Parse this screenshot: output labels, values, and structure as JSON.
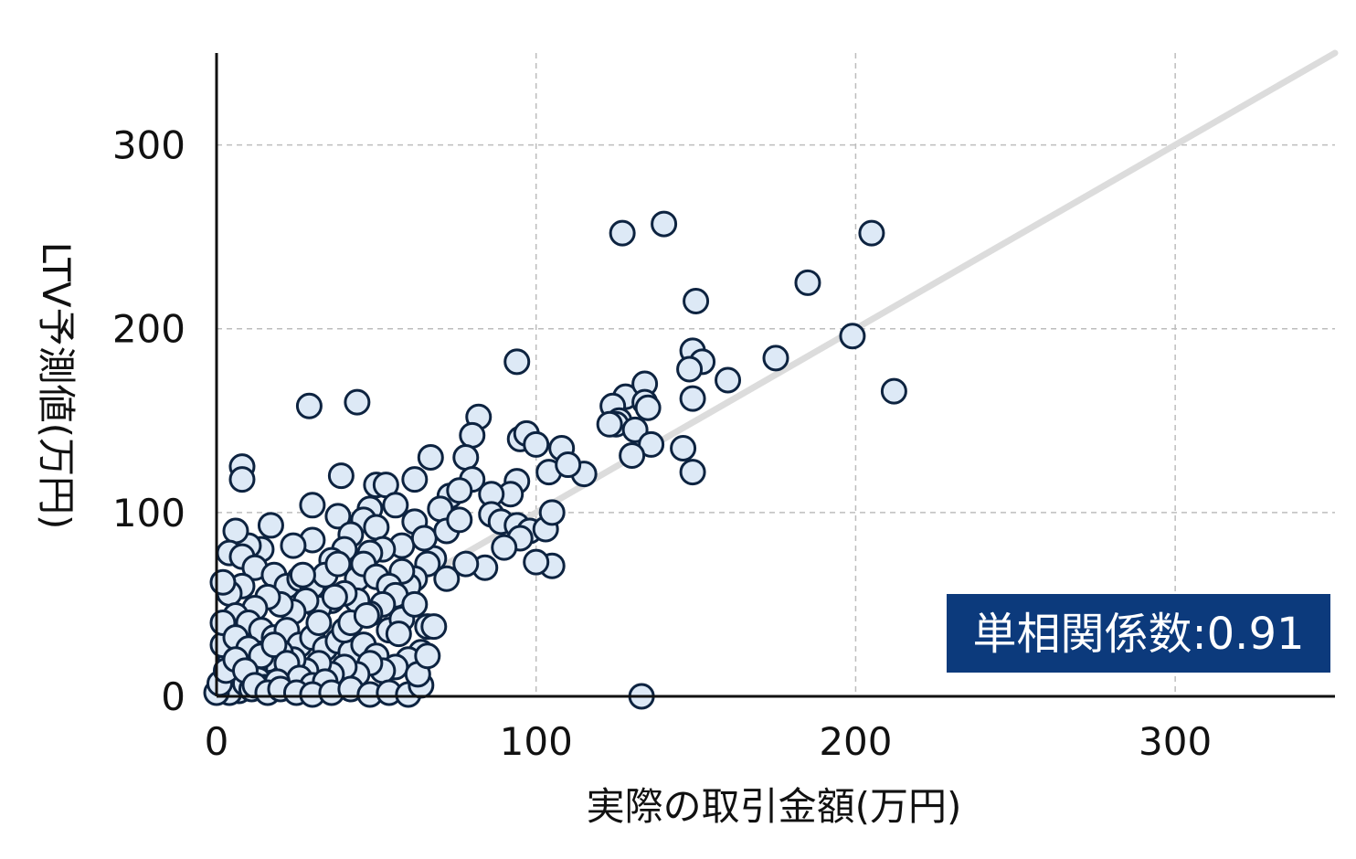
{
  "chart_data": {
    "type": "scatter",
    "title": "",
    "xlabel": "実際の取引金額(万円)",
    "ylabel": "LTV予測値(万円)",
    "xlim": [
      0,
      350
    ],
    "ylim": [
      0,
      350
    ],
    "xticks": [
      0,
      100,
      200,
      300
    ],
    "yticks": [
      0,
      100,
      200,
      300
    ],
    "x_tick_labels": [
      "0",
      "100",
      "200",
      "300"
    ],
    "y_tick_labels": [
      "0",
      "100",
      "200",
      "300"
    ],
    "grid": true,
    "reference_line": {
      "from": [
        0,
        0
      ],
      "to": [
        350,
        350
      ]
    },
    "annotation": "単相関係数:0.91",
    "colors": {
      "point_fill": "#dde9f6",
      "point_edge": "#0d2340",
      "annotation_bg": "#0c3a7c",
      "reference_line": "#dcdcdc"
    },
    "series": [
      {
        "values": [
          [
            127,
            252
          ],
          [
            140,
            257
          ],
          [
            205,
            252
          ],
          [
            185,
            225
          ],
          [
            150,
            215
          ],
          [
            199,
            196
          ],
          [
            149,
            188
          ],
          [
            152,
            182
          ],
          [
            148,
            178
          ],
          [
            175,
            184
          ],
          [
            160,
            172
          ],
          [
            212,
            166
          ],
          [
            94,
            182
          ],
          [
            29,
            158
          ],
          [
            44,
            160
          ],
          [
            149,
            162
          ],
          [
            128,
            163
          ],
          [
            134,
            170
          ],
          [
            134,
            160
          ],
          [
            135,
            157
          ],
          [
            124,
            158
          ],
          [
            126,
            150
          ],
          [
            125,
            148
          ],
          [
            123,
            148
          ],
          [
            131,
            145
          ],
          [
            136,
            137
          ],
          [
            130,
            131
          ],
          [
            146,
            135
          ],
          [
            149,
            122
          ],
          [
            108,
            135
          ],
          [
            115,
            121
          ],
          [
            104,
            122
          ],
          [
            110,
            126
          ],
          [
            95,
            140
          ],
          [
            97,
            143
          ],
          [
            100,
            137
          ],
          [
            82,
            152
          ],
          [
            80,
            142
          ],
          [
            78,
            130
          ],
          [
            80,
            118
          ],
          [
            8,
            125
          ],
          [
            8,
            118
          ],
          [
            39,
            120
          ],
          [
            30,
            104
          ],
          [
            94,
            117
          ],
          [
            92,
            110
          ],
          [
            73,
            109
          ],
          [
            70,
            102
          ],
          [
            67,
            130
          ],
          [
            62,
            118
          ],
          [
            76,
            112
          ],
          [
            86,
            110
          ],
          [
            86,
            99
          ],
          [
            89,
            95
          ],
          [
            94,
            93
          ],
          [
            98,
            90
          ],
          [
            103,
            91
          ],
          [
            105,
            100
          ],
          [
            95,
            86
          ],
          [
            90,
            81
          ],
          [
            105,
            71
          ],
          [
            100,
            73
          ],
          [
            84,
            70
          ],
          [
            78,
            72
          ],
          [
            68,
            75
          ],
          [
            66,
            72
          ],
          [
            72,
            64
          ],
          [
            62,
            64
          ],
          [
            60,
            60
          ],
          [
            58,
            68
          ],
          [
            50,
            115
          ],
          [
            53,
            115
          ],
          [
            48,
            102
          ],
          [
            46,
            96
          ],
          [
            50,
            92
          ],
          [
            56,
            104
          ],
          [
            62,
            95
          ],
          [
            58,
            82
          ],
          [
            52,
            80
          ],
          [
            48,
            78
          ],
          [
            38,
            98
          ],
          [
            42,
            88
          ],
          [
            40,
            80
          ],
          [
            36,
            74
          ],
          [
            30,
            85
          ],
          [
            24,
            82
          ],
          [
            17,
            93
          ],
          [
            14,
            80
          ],
          [
            10,
            82
          ],
          [
            6,
            90
          ],
          [
            4,
            78
          ],
          [
            8,
            76
          ],
          [
            12,
            70
          ],
          [
            18,
            66
          ],
          [
            22,
            60
          ],
          [
            26,
            64
          ],
          [
            30,
            60
          ],
          [
            34,
            66
          ],
          [
            38,
            72
          ],
          [
            44,
            64
          ],
          [
            46,
            72
          ],
          [
            50,
            65
          ],
          [
            54,
            60
          ],
          [
            56,
            55
          ],
          [
            52,
            50
          ],
          [
            48,
            45
          ],
          [
            44,
            52
          ],
          [
            40,
            56
          ],
          [
            36,
            52
          ],
          [
            32,
            48
          ],
          [
            28,
            52
          ],
          [
            24,
            46
          ],
          [
            20,
            50
          ],
          [
            16,
            54
          ],
          [
            12,
            48
          ],
          [
            8,
            60
          ],
          [
            4,
            56
          ],
          [
            2,
            62
          ],
          [
            6,
            44
          ],
          [
            10,
            40
          ],
          [
            14,
            36
          ],
          [
            18,
            32
          ],
          [
            22,
            36
          ],
          [
            26,
            28
          ],
          [
            30,
            32
          ],
          [
            34,
            26
          ],
          [
            38,
            30
          ],
          [
            42,
            24
          ],
          [
            46,
            28
          ],
          [
            50,
            22
          ],
          [
            54,
            36
          ],
          [
            58,
            42
          ],
          [
            62,
            50
          ],
          [
            66,
            38
          ],
          [
            64,
            24
          ],
          [
            60,
            20
          ],
          [
            56,
            16
          ],
          [
            52,
            14
          ],
          [
            48,
            18
          ],
          [
            44,
            12
          ],
          [
            40,
            16
          ],
          [
            36,
            12
          ],
          [
            32,
            18
          ],
          [
            28,
            14
          ],
          [
            24,
            20
          ],
          [
            20,
            24
          ],
          [
            16,
            20
          ],
          [
            12,
            16
          ],
          [
            8,
            12
          ],
          [
            4,
            18
          ],
          [
            2,
            28
          ],
          [
            2,
            40
          ],
          [
            6,
            32
          ],
          [
            10,
            26
          ],
          [
            14,
            22
          ],
          [
            18,
            28
          ],
          [
            22,
            18
          ],
          [
            26,
            10
          ],
          [
            30,
            6
          ],
          [
            34,
            8
          ],
          [
            3,
            10
          ],
          [
            5,
            6
          ],
          [
            7,
            3
          ],
          [
            2,
            4
          ],
          [
            4,
            2
          ],
          [
            9,
            7
          ],
          [
            11,
            4
          ],
          [
            13,
            9
          ],
          [
            15,
            5
          ],
          [
            19,
            8
          ],
          [
            0,
            2
          ],
          [
            1,
            7
          ],
          [
            3,
            14
          ],
          [
            6,
            20
          ],
          [
            9,
            14
          ],
          [
            12,
            6
          ],
          [
            16,
            2
          ],
          [
            20,
            4
          ],
          [
            25,
            2
          ],
          [
            30,
            1
          ],
          [
            36,
            2
          ],
          [
            42,
            4
          ],
          [
            48,
            1
          ],
          [
            54,
            2
          ],
          [
            60,
            1
          ],
          [
            64,
            6
          ],
          [
            63,
            12
          ],
          [
            66,
            22
          ],
          [
            68,
            38
          ],
          [
            133,
            0
          ],
          [
            40,
            36
          ],
          [
            42,
            40
          ],
          [
            32,
            40
          ],
          [
            27,
            66
          ],
          [
            37,
            54
          ],
          [
            47,
            44
          ],
          [
            57,
            34
          ],
          [
            65,
            86
          ],
          [
            72,
            90
          ],
          [
            76,
            96
          ]
        ]
      }
    ]
  }
}
